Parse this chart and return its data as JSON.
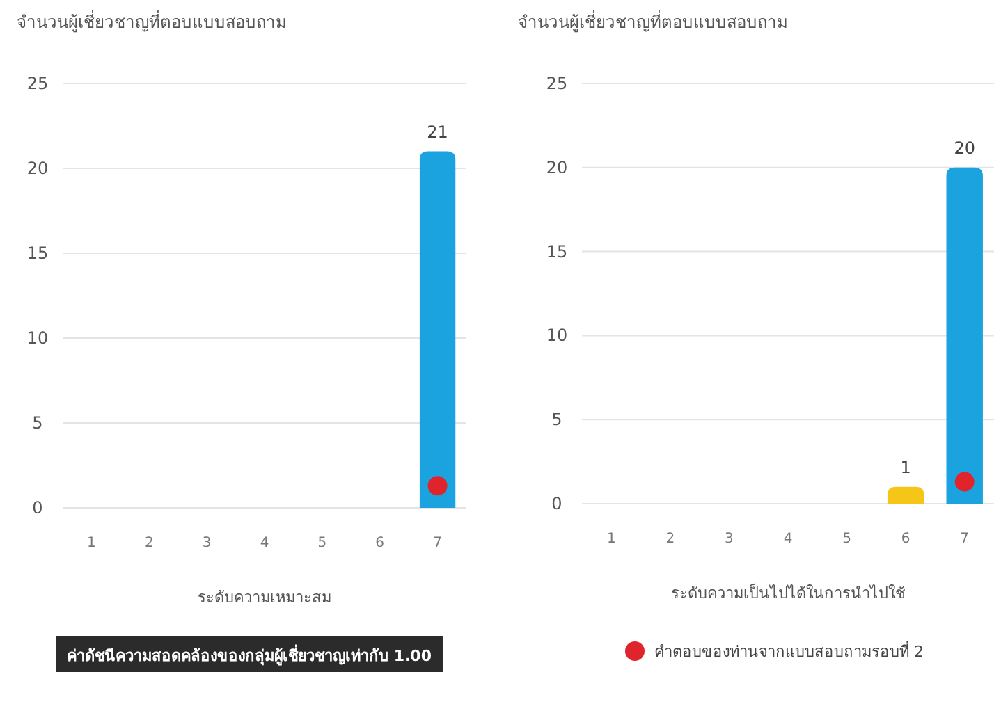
{
  "chart_data": [
    {
      "type": "bar",
      "title": "จำนวนผู้เชี่ยวชาญที่ตอบแบบสอบถาม",
      "xlabel": "ระดับความเหมาะสม",
      "categories": [
        "1",
        "2",
        "3",
        "4",
        "5",
        "6",
        "7"
      ],
      "ylim": [
        0,
        25
      ],
      "yticks": [
        0,
        5,
        10,
        15,
        20,
        25
      ],
      "grid": "y",
      "legend": false,
      "series": [
        {
          "colors": [
            "#1ba3e0",
            "#1ba3e0",
            "#1ba3e0",
            "#1ba3e0",
            "#1ba3e0",
            "#1ba3e0",
            "#1ba3e0"
          ],
          "values": [
            0,
            0,
            0,
            0,
            0,
            0,
            21
          ],
          "value_labels": [
            null,
            null,
            null,
            null,
            null,
            null,
            "21"
          ]
        },
        {
          "type": "scatter",
          "color": "#e0242c",
          "marker": "circle",
          "x": [
            "7"
          ],
          "values": [
            1.3
          ]
        }
      ],
      "annotations": [
        "ค่าดัชนีความสอดคล้องของกลุ่มผู้เชี่ยวชาญเท่ากับ 1.00"
      ]
    },
    {
      "type": "bar",
      "title": "จำนวนผู้เชี่ยวชาญที่ตอบแบบสอบถาม",
      "xlabel": "ระดับความเป็นไปได้ในการนำไปใช้",
      "categories": [
        "1",
        "2",
        "3",
        "4",
        "5",
        "6",
        "7"
      ],
      "ylim": [
        0,
        25
      ],
      "yticks": [
        0,
        5,
        10,
        15,
        20,
        25
      ],
      "grid": "y",
      "legend": "bottom",
      "series": [
        {
          "colors": [
            "#1ba3e0",
            "#1ba3e0",
            "#1ba3e0",
            "#1ba3e0",
            "#1ba3e0",
            "#f5c518",
            "#1ba3e0"
          ],
          "values": [
            0,
            0,
            0,
            0,
            0,
            1,
            20
          ],
          "value_labels": [
            null,
            null,
            null,
            null,
            null,
            "1",
            "20"
          ]
        },
        {
          "type": "scatter",
          "name": "คำตอบของท่านจากแบบสอบถามรอบที่ 2",
          "color": "#e0242c",
          "marker": "circle",
          "x": [
            "7"
          ],
          "values": [
            1.3
          ]
        }
      ]
    }
  ]
}
